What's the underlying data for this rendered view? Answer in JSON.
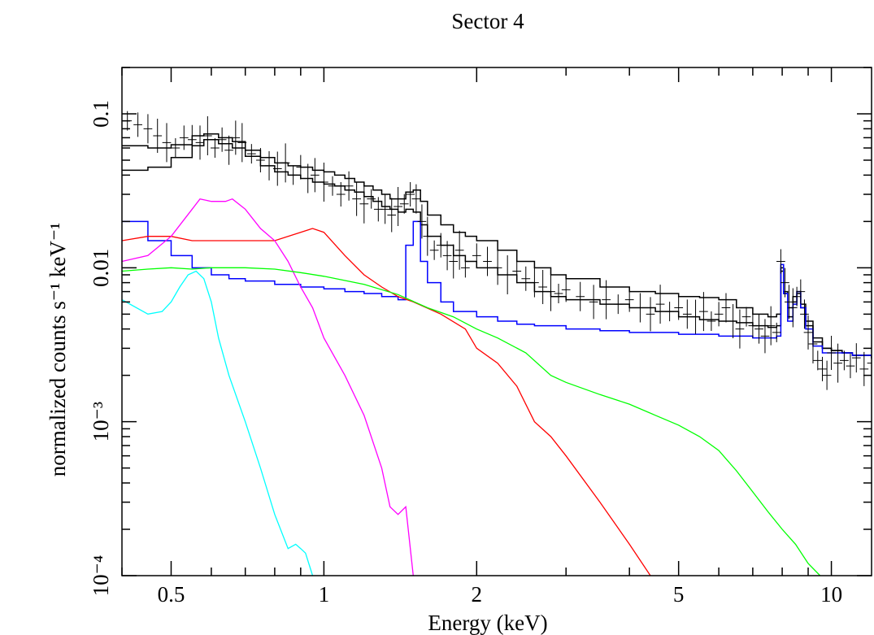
{
  "chart_data": {
    "type": "line",
    "title": "Sector 4",
    "xlabel": "Energy (keV)",
    "ylabel": "normalized counts s⁻¹ keV⁻¹",
    "xscale": "log",
    "yscale": "log",
    "xlim": [
      0.4,
      12
    ],
    "ylim": [
      0.0001,
      0.2
    ],
    "x_tick_labels": [
      {
        "value": 0.5,
        "label": "0.5"
      },
      {
        "value": 1,
        "label": "1"
      },
      {
        "value": 2,
        "label": "2"
      },
      {
        "value": 5,
        "label": "5"
      },
      {
        "value": 10,
        "label": "10"
      }
    ],
    "y_tick_labels": [
      {
        "value": 0.1,
        "label": "0.1"
      },
      {
        "value": 0.01,
        "label": "0.01"
      },
      {
        "value": 0.001,
        "label": "10⁻³"
      },
      {
        "value": 0.0001,
        "label": "10⁻⁴"
      }
    ],
    "grid": false,
    "legend": "none",
    "series": [
      {
        "style": "step",
        "color": "#000000",
        "x": [
          0.4,
          0.45,
          0.5,
          0.55,
          0.58,
          0.62,
          0.66,
          0.7,
          0.75,
          0.8,
          0.85,
          0.9,
          0.95,
          1.0,
          1.05,
          1.1,
          1.15,
          1.2,
          1.25,
          1.3,
          1.35,
          1.4,
          1.45,
          1.5,
          1.55,
          1.6,
          1.7,
          1.8,
          1.9,
          2.0,
          2.2,
          2.4,
          2.6,
          2.8,
          3.0,
          3.5,
          4.0,
          4.5,
          5.0,
          5.5,
          6.0,
          6.5,
          7.0,
          7.5,
          7.8,
          7.95,
          8.05,
          8.2,
          8.4,
          8.55,
          8.7,
          8.9,
          9.2,
          9.6,
          10.0,
          10.5,
          11.0,
          12.0
        ],
        "y": [
          0.062,
          0.06,
          0.063,
          0.072,
          0.074,
          0.07,
          0.066,
          0.058,
          0.052,
          0.048,
          0.046,
          0.045,
          0.043,
          0.042,
          0.04,
          0.038,
          0.036,
          0.034,
          0.032,
          0.03,
          0.028,
          0.028,
          0.031,
          0.032,
          0.027,
          0.022,
          0.019,
          0.017,
          0.016,
          0.015,
          0.013,
          0.011,
          0.01,
          0.009,
          0.0085,
          0.0075,
          0.007,
          0.0068,
          0.0065,
          0.0064,
          0.0062,
          0.0055,
          0.005,
          0.0048,
          0.005,
          0.0095,
          0.007,
          0.0055,
          0.0065,
          0.007,
          0.0058,
          0.0045,
          0.0035,
          0.003,
          0.0029,
          0.0028,
          0.0027,
          0.0026
        ]
      },
      {
        "style": "step",
        "color": "#000000",
        "x": [
          0.4,
          0.45,
          0.5,
          0.55,
          0.58,
          0.62,
          0.66,
          0.7,
          0.75,
          0.8,
          0.85,
          0.9,
          0.95,
          1.0,
          1.05,
          1.1,
          1.15,
          1.2,
          1.25,
          1.3,
          1.35,
          1.4,
          1.45,
          1.5,
          1.55,
          1.6,
          1.7,
          1.8,
          1.9,
          2.0,
          2.2,
          2.4,
          2.6,
          2.8,
          3.0,
          3.5,
          4.0,
          4.5,
          5.0,
          5.5,
          6.0,
          6.5,
          7.0,
          7.5,
          7.8,
          7.95,
          8.05,
          8.2,
          8.4,
          8.55,
          8.7,
          8.9,
          9.2,
          9.6,
          10.0,
          10.5,
          11.0,
          12.0
        ],
        "y": [
          0.043,
          0.045,
          0.052,
          0.062,
          0.068,
          0.064,
          0.06,
          0.053,
          0.046,
          0.042,
          0.04,
          0.038,
          0.036,
          0.035,
          0.034,
          0.032,
          0.031,
          0.029,
          0.027,
          0.025,
          0.024,
          0.023,
          0.024,
          0.023,
          0.019,
          0.016,
          0.014,
          0.012,
          0.011,
          0.01,
          0.009,
          0.008,
          0.007,
          0.0065,
          0.0062,
          0.0058,
          0.0055,
          0.0052,
          0.0048,
          0.0046,
          0.0045,
          0.0044,
          0.0042,
          0.0041,
          0.0042,
          0.01,
          0.0068,
          0.0048,
          0.006,
          0.0068,
          0.0055,
          0.0042,
          0.0033,
          0.003,
          0.0029,
          0.0028,
          0.0027,
          0.0026
        ]
      },
      {
        "style": "step",
        "color": "#0000ff",
        "x": [
          0.4,
          0.45,
          0.5,
          0.55,
          0.6,
          0.65,
          0.7,
          0.8,
          0.9,
          1.0,
          1.1,
          1.2,
          1.3,
          1.4,
          1.45,
          1.5,
          1.55,
          1.6,
          1.7,
          1.8,
          2.0,
          2.2,
          2.4,
          2.6,
          3.0,
          3.5,
          4.0,
          5.0,
          6.0,
          7.0,
          7.8,
          7.95,
          8.05,
          8.2,
          8.4,
          8.55,
          8.7,
          8.9,
          9.2,
          9.6,
          10.0,
          11.0,
          12.0
        ],
        "y": [
          0.02,
          0.015,
          0.012,
          0.01,
          0.009,
          0.0085,
          0.0082,
          0.0078,
          0.0075,
          0.0073,
          0.007,
          0.0068,
          0.0065,
          0.0062,
          0.014,
          0.02,
          0.011,
          0.008,
          0.006,
          0.0052,
          0.0048,
          0.0045,
          0.0043,
          0.0042,
          0.004,
          0.0039,
          0.0038,
          0.0037,
          0.0036,
          0.0035,
          0.0036,
          0.0105,
          0.0068,
          0.0045,
          0.0058,
          0.007,
          0.0055,
          0.004,
          0.0031,
          0.0028,
          0.0028,
          0.0027,
          0.0026
        ]
      },
      {
        "style": "line",
        "color": "#ff0000",
        "x": [
          0.4,
          0.45,
          0.5,
          0.55,
          0.6,
          0.7,
          0.8,
          0.9,
          0.95,
          1.0,
          1.1,
          1.2,
          1.3,
          1.4,
          1.5,
          1.7,
          1.9,
          2.0,
          2.2,
          2.4,
          2.6,
          2.8,
          3.0,
          3.5,
          4.0,
          4.4
        ],
        "y": [
          0.015,
          0.016,
          0.016,
          0.015,
          0.015,
          0.015,
          0.015,
          0.017,
          0.018,
          0.017,
          0.012,
          0.009,
          0.0075,
          0.0065,
          0.006,
          0.005,
          0.004,
          0.003,
          0.0024,
          0.0017,
          0.001,
          0.0008,
          0.0006,
          0.0003,
          0.00016,
          0.0001
        ]
      },
      {
        "style": "line",
        "color": "#ff00ff",
        "x": [
          0.4,
          0.45,
          0.5,
          0.55,
          0.57,
          0.6,
          0.64,
          0.66,
          0.7,
          0.75,
          0.8,
          0.85,
          0.9,
          0.95,
          1.0,
          1.1,
          1.2,
          1.3,
          1.35,
          1.4,
          1.45,
          1.5
        ],
        "y": [
          0.011,
          0.012,
          0.016,
          0.024,
          0.028,
          0.027,
          0.027,
          0.028,
          0.024,
          0.018,
          0.015,
          0.011,
          0.0075,
          0.0055,
          0.0035,
          0.002,
          0.0011,
          0.0005,
          0.00028,
          0.00025,
          0.00028,
          0.0001
        ]
      },
      {
        "style": "line",
        "color": "#00ff00",
        "x": [
          0.4,
          0.45,
          0.5,
          0.55,
          0.6,
          0.7,
          0.8,
          0.9,
          1.0,
          1.2,
          1.4,
          1.6,
          1.8,
          2.0,
          2.2,
          2.5,
          2.8,
          3.0,
          3.5,
          4.0,
          4.5,
          5.0,
          5.5,
          6.0,
          6.5,
          7.0,
          7.5,
          8.0,
          8.5,
          9.0,
          9.5
        ],
        "y": [
          0.0095,
          0.0098,
          0.01,
          0.0098,
          0.01,
          0.01,
          0.0098,
          0.0093,
          0.0088,
          0.0078,
          0.0067,
          0.0055,
          0.0048,
          0.004,
          0.0035,
          0.0028,
          0.002,
          0.0018,
          0.0015,
          0.0013,
          0.0011,
          0.00095,
          0.0008,
          0.00065,
          0.00048,
          0.00035,
          0.00026,
          0.0002,
          0.00016,
          0.00012,
          0.0001
        ]
      },
      {
        "style": "line",
        "color": "#00ffff",
        "x": [
          0.4,
          0.45,
          0.48,
          0.5,
          0.52,
          0.54,
          0.56,
          0.58,
          0.6,
          0.62,
          0.65,
          0.7,
          0.75,
          0.8,
          0.85,
          0.88,
          0.9,
          0.92,
          0.95
        ],
        "y": [
          0.0062,
          0.005,
          0.0052,
          0.006,
          0.0075,
          0.009,
          0.0095,
          0.0085,
          0.006,
          0.0035,
          0.002,
          0.001,
          0.0005,
          0.00025,
          0.00015,
          0.00016,
          0.00015,
          0.00014,
          0.0001
        ]
      },
      {
        "style": "crosses",
        "color": "#000000",
        "x": [
          0.41,
          0.43,
          0.45,
          0.47,
          0.49,
          0.51,
          0.53,
          0.55,
          0.57,
          0.59,
          0.61,
          0.63,
          0.65,
          0.67,
          0.69,
          0.72,
          0.75,
          0.78,
          0.81,
          0.84,
          0.87,
          0.9,
          0.93,
          0.96,
          1.0,
          1.04,
          1.08,
          1.12,
          1.16,
          1.2,
          1.24,
          1.28,
          1.32,
          1.36,
          1.4,
          1.44,
          1.48,
          1.52,
          1.56,
          1.6,
          1.65,
          1.7,
          1.75,
          1.8,
          1.85,
          1.9,
          2.0,
          2.1,
          2.2,
          2.3,
          2.4,
          2.5,
          2.6,
          2.7,
          2.8,
          2.9,
          3.0,
          3.2,
          3.4,
          3.6,
          3.8,
          4.0,
          4.2,
          4.4,
          4.6,
          4.8,
          5.0,
          5.2,
          5.4,
          5.6,
          5.8,
          6.0,
          6.2,
          6.4,
          6.6,
          6.8,
          7.0,
          7.2,
          7.4,
          7.6,
          7.8,
          7.95,
          8.1,
          8.25,
          8.4,
          8.55,
          8.7,
          8.85,
          9.0,
          9.2,
          9.4,
          9.6,
          9.8,
          10.0,
          10.3,
          10.6,
          10.9,
          11.2,
          11.6,
          12.0
        ],
        "y": [
          0.09,
          0.085,
          0.08,
          0.072,
          0.065,
          0.06,
          0.07,
          0.068,
          0.065,
          0.072,
          0.06,
          0.068,
          0.058,
          0.07,
          0.065,
          0.055,
          0.05,
          0.046,
          0.044,
          0.048,
          0.04,
          0.045,
          0.038,
          0.04,
          0.036,
          0.034,
          0.03,
          0.034,
          0.028,
          0.026,
          0.028,
          0.024,
          0.024,
          0.022,
          0.025,
          0.026,
          0.03,
          0.028,
          0.02,
          0.016,
          0.013,
          0.014,
          0.012,
          0.011,
          0.013,
          0.01,
          0.012,
          0.011,
          0.01,
          0.009,
          0.0095,
          0.0085,
          0.008,
          0.0075,
          0.007,
          0.0068,
          0.0072,
          0.0065,
          0.006,
          0.0062,
          0.0058,
          0.0062,
          0.0055,
          0.005,
          0.0058,
          0.0052,
          0.0055,
          0.005,
          0.0048,
          0.0052,
          0.0045,
          0.005,
          0.0055,
          0.0045,
          0.004,
          0.0048,
          0.0042,
          0.004,
          0.0036,
          0.0042,
          0.0038,
          0.011,
          0.008,
          0.006,
          0.0055,
          0.0065,
          0.007,
          0.005,
          0.0038,
          0.0032,
          0.0025,
          0.0022,
          0.002,
          0.0028,
          0.0024,
          0.0025,
          0.0023,
          0.0026,
          0.0022,
          0.0024
        ]
      }
    ]
  }
}
